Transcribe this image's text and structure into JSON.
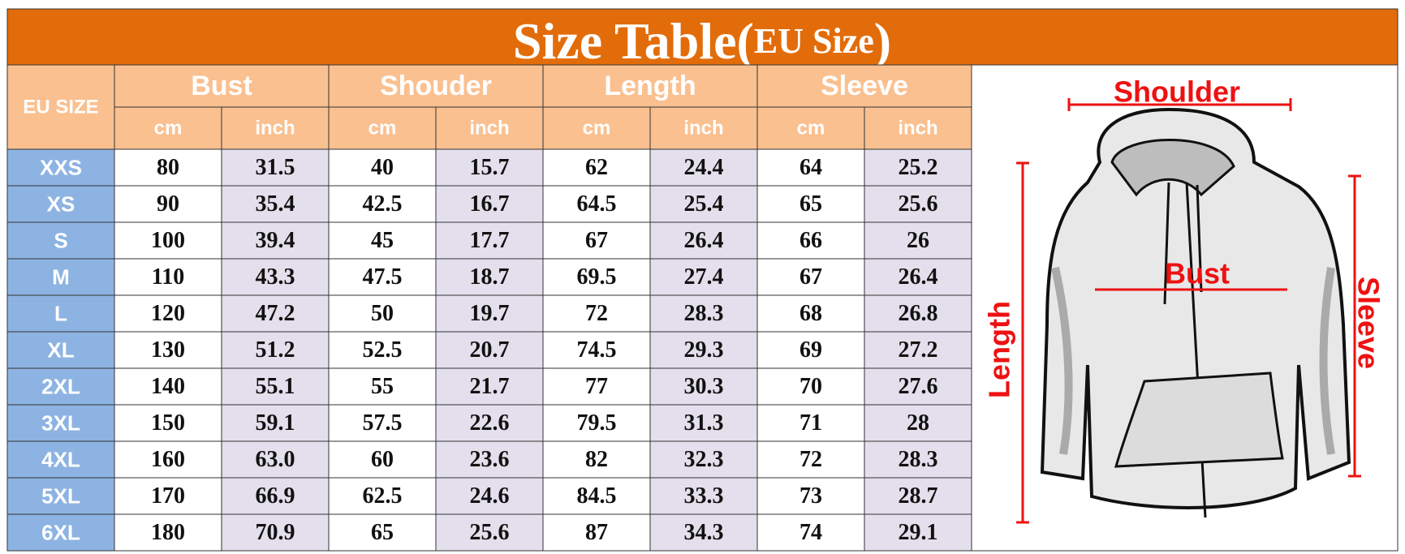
{
  "header": {
    "title": [
      "Size Table(",
      "EU Size",
      ")"
    ]
  },
  "table": {
    "corner": "EU SIZE",
    "groups": [
      {
        "name": "Bust",
        "units": [
          "cm",
          "inch"
        ]
      },
      {
        "name": "Shouder",
        "units": [
          "cm",
          "inch"
        ]
      },
      {
        "name": "Length",
        "units": [
          "cm",
          "inch"
        ]
      },
      {
        "name": "Sleeve",
        "units": [
          "cm",
          "inch"
        ]
      }
    ],
    "rows": [
      {
        "size": "XXS",
        "values": [
          "80",
          "31.5",
          "40",
          "15.7",
          "62",
          "24.4",
          "64",
          "25.2"
        ]
      },
      {
        "size": "XS",
        "values": [
          "90",
          "35.4",
          "42.5",
          "16.7",
          "64.5",
          "25.4",
          "65",
          "25.6"
        ]
      },
      {
        "size": "S",
        "values": [
          "100",
          "39.4",
          "45",
          "17.7",
          "67",
          "26.4",
          "66",
          "26"
        ]
      },
      {
        "size": "M",
        "values": [
          "110",
          "43.3",
          "47.5",
          "18.7",
          "69.5",
          "27.4",
          "67",
          "26.4"
        ]
      },
      {
        "size": "L",
        "values": [
          "120",
          "47.2",
          "50",
          "19.7",
          "72",
          "28.3",
          "68",
          "26.8"
        ]
      },
      {
        "size": "XL",
        "values": [
          "130",
          "51.2",
          "52.5",
          "20.7",
          "74.5",
          "29.3",
          "69",
          "27.2"
        ]
      },
      {
        "size": "2XL",
        "values": [
          "140",
          "55.1",
          "55",
          "21.7",
          "77",
          "30.3",
          "70",
          "27.6"
        ]
      },
      {
        "size": "3XL",
        "values": [
          "150",
          "59.1",
          "57.5",
          "22.6",
          "79.5",
          "31.3",
          "71",
          "28"
        ]
      },
      {
        "size": "4XL",
        "values": [
          "160",
          "63.0",
          "60",
          "23.6",
          "82",
          "32.3",
          "72",
          "28.3"
        ]
      },
      {
        "size": "5XL",
        "values": [
          "170",
          "66.9",
          "62.5",
          "24.6",
          "84.5",
          "33.3",
          "73",
          "28.7"
        ]
      },
      {
        "size": "6XL",
        "values": [
          "180",
          "70.9",
          "65",
          "25.6",
          "87",
          "34.3",
          "74",
          "29.1"
        ]
      }
    ]
  },
  "diagram": {
    "labels": {
      "shoulder": "Shoulder",
      "bust": "Bust",
      "length": "Length",
      "sleeve": "Sleeve"
    }
  }
}
